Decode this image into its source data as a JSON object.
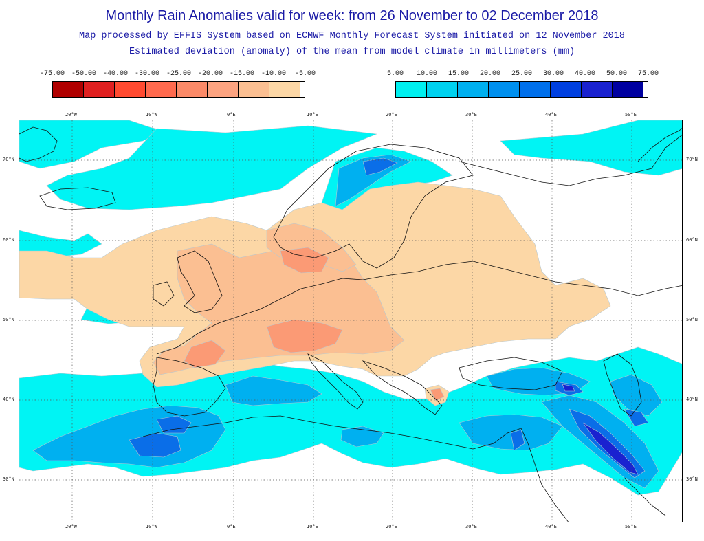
{
  "header": {
    "title": "Monthly Rain Anomalies valid for week: from 26 November to 02 December 2018",
    "subtitle1": "Map processed by EFFIS System based on ECMWF Monthly Forecast System initiated on 12 November 2018",
    "subtitle2": "Estimated deviation (anomaly) of the mean from model climate in millimeters (mm)"
  },
  "legend_negative": {
    "labels": [
      "-75.00",
      "-50.00",
      "-40.00",
      "-30.00",
      "-25.00",
      "-20.00",
      "-15.00",
      "-10.00",
      "-5.00"
    ],
    "colors": [
      "#b00000",
      "#e02020",
      "#ff4a30",
      "#ff6a4e",
      "#fb8a68",
      "#fca380",
      "#fbbf92",
      "#fcd7a6"
    ]
  },
  "legend_positive": {
    "labels": [
      "5.00",
      "10.00",
      "15.00",
      "20.00",
      "25.00",
      "30.00",
      "40.00",
      "50.00",
      "75.00"
    ],
    "colors": [
      "#00f0f0",
      "#00d2f0",
      "#00b0f0",
      "#0090ef",
      "#0070ec",
      "#0040e0",
      "#1a22d0",
      "#0000a0"
    ]
  },
  "axes": {
    "lon_labels": [
      "20°W",
      "10°W",
      "0°E",
      "10°E",
      "20°E",
      "30°E",
      "40°E",
      "50°E"
    ],
    "lat_labels": [
      "70°N",
      "60°N",
      "50°N",
      "40°N",
      "30°N"
    ]
  },
  "map_colors": {
    "positive_light": "#00f4f4",
    "positive_mid": "#00b0f0",
    "positive_strong": "#0a6ee8",
    "positive_max": "#1a22d0",
    "negative_light": "#fcd7a6",
    "negative_mid": "#fbbf92",
    "negative_strong": "#fb9a75",
    "coast": "#111111",
    "grid": "#555555"
  }
}
